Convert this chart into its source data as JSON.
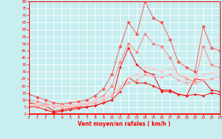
{
  "x": [
    0,
    1,
    2,
    3,
    4,
    5,
    6,
    7,
    8,
    9,
    10,
    11,
    12,
    13,
    14,
    15,
    16,
    17,
    18,
    19,
    20,
    21,
    22,
    23
  ],
  "series": [
    {
      "color": "#ff0000",
      "alpha": 1.0,
      "linewidth": 0.7,
      "marker": "+",
      "markersize": 3.0,
      "y": [
        8,
        7,
        6,
        2,
        3,
        4,
        5,
        5,
        6,
        8,
        10,
        33,
        47,
        35,
        30,
        28,
        16,
        16,
        14,
        13,
        25,
        24,
        17,
        16
      ]
    },
    {
      "color": "#ff0000",
      "alpha": 1.0,
      "linewidth": 0.7,
      "marker": "+",
      "markersize": 3.0,
      "y": [
        5,
        5,
        3,
        1,
        2,
        3,
        4,
        5,
        6,
        8,
        10,
        16,
        26,
        22,
        22,
        20,
        17,
        17,
        14,
        13,
        14,
        13,
        15,
        14
      ]
    },
    {
      "color": "#ff5555",
      "alpha": 1.0,
      "linewidth": 0.7,
      "marker": "D",
      "markersize": 2.0,
      "y": [
        14,
        12,
        10,
        8,
        7,
        8,
        9,
        10,
        13,
        18,
        28,
        48,
        65,
        57,
        80,
        68,
        65,
        53,
        37,
        33,
        30,
        62,
        47,
        45
      ]
    },
    {
      "color": "#ff8888",
      "alpha": 1.0,
      "linewidth": 0.7,
      "marker": "D",
      "markersize": 2.0,
      "y": [
        10,
        9,
        7,
        6,
        5,
        6,
        7,
        8,
        10,
        13,
        20,
        37,
        50,
        44,
        57,
        50,
        48,
        40,
        28,
        25,
        23,
        48,
        35,
        33
      ]
    },
    {
      "color": "#ffaaaa",
      "alpha": 1.0,
      "linewidth": 0.7,
      "marker": "D",
      "markersize": 2.0,
      "y": [
        6,
        6,
        5,
        5,
        5,
        5,
        6,
        7,
        8,
        10,
        13,
        18,
        22,
        24,
        28,
        27,
        26,
        28,
        24,
        22,
        22,
        24,
        25,
        26
      ]
    },
    {
      "color": "#ffcccc",
      "alpha": 1.0,
      "linewidth": 0.7,
      "marker": "D",
      "markersize": 2.0,
      "y": [
        7,
        7,
        6,
        6,
        6,
        6,
        7,
        8,
        10,
        12,
        15,
        20,
        26,
        28,
        33,
        32,
        30,
        32,
        28,
        26,
        26,
        28,
        29,
        30
      ]
    }
  ],
  "xlim": [
    0,
    23
  ],
  "ylim": [
    0,
    80
  ],
  "ytick_labels": [
    "0",
    "5",
    "10",
    "15",
    "20",
    "25",
    "30",
    "35",
    "40",
    "45",
    "50",
    "55",
    "60",
    "65",
    "70",
    "75",
    "80"
  ],
  "yticks": [
    0,
    5,
    10,
    15,
    20,
    25,
    30,
    35,
    40,
    45,
    50,
    55,
    60,
    65,
    70,
    75,
    80
  ],
  "xticks": [
    0,
    1,
    2,
    3,
    4,
    5,
    6,
    7,
    8,
    9,
    10,
    11,
    12,
    13,
    14,
    15,
    16,
    17,
    18,
    19,
    20,
    21,
    22,
    23
  ],
  "xlabel": "Vent moyen/en rafales ( km/h )",
  "background_color": "#c8eef0",
  "grid_color": "#ffffff",
  "axis_color": "#ff0000",
  "label_color": "#ff0000",
  "tick_color": "#ff0000"
}
